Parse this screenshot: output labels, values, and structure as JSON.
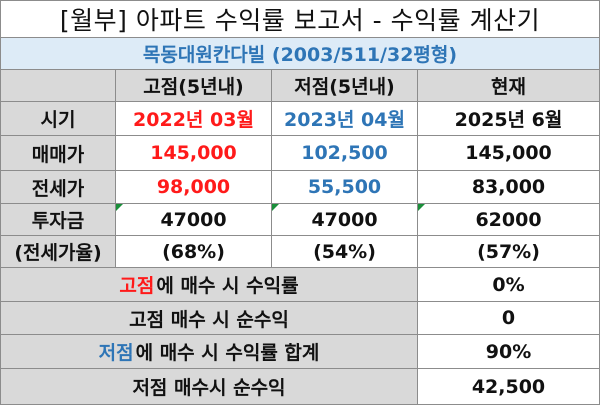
{
  "title": "[월부] 아파트 수익률 보고서 - 수익률 계산기",
  "property": "목동대원칸다빌 (2003/511/32평형)",
  "headers": {
    "blank": "",
    "high": "고점(5년내)",
    "low": "저점(5년내)",
    "current": "현재"
  },
  "rows": [
    {
      "label": "시기",
      "high": "2022년 03월",
      "low": "2023년 04월",
      "current": "2025년 6월"
    },
    {
      "label": "매매가",
      "high": "145,000",
      "low": "102,500",
      "current": "145,000"
    },
    {
      "label": "전세가",
      "high": "98,000",
      "low": "55,500",
      "current": "83,000"
    }
  ],
  "investment": {
    "label_top": "투자금",
    "label_bottom": "(전세가율)",
    "high": "47000",
    "high_ratio": "(68%)",
    "low": "47000",
    "low_ratio": "(54%)",
    "current": "62000",
    "current_ratio": "(57%)"
  },
  "summary": [
    {
      "prefix": "고점",
      "label": "에 매수 시 수익률",
      "value": "0%",
      "prefix_color": "#ff1a1a"
    },
    {
      "prefix": "",
      "label": "고점 매수 시 순수익",
      "value": "0",
      "prefix_color": ""
    },
    {
      "prefix": "저점",
      "label": "에 매수 시 수익률 합계",
      "value": "90%",
      "prefix_color": "#2e75b6"
    },
    {
      "prefix": "",
      "label": "저점 매수시 순수익",
      "value": "42,500",
      "prefix_color": ""
    }
  ],
  "colors": {
    "header_bg": "#d9d9d9",
    "subtitle_bg": "#ddebf7",
    "red": "#ff1a1a",
    "blue": "#2e75b6",
    "grid": "#8c8c8c"
  }
}
